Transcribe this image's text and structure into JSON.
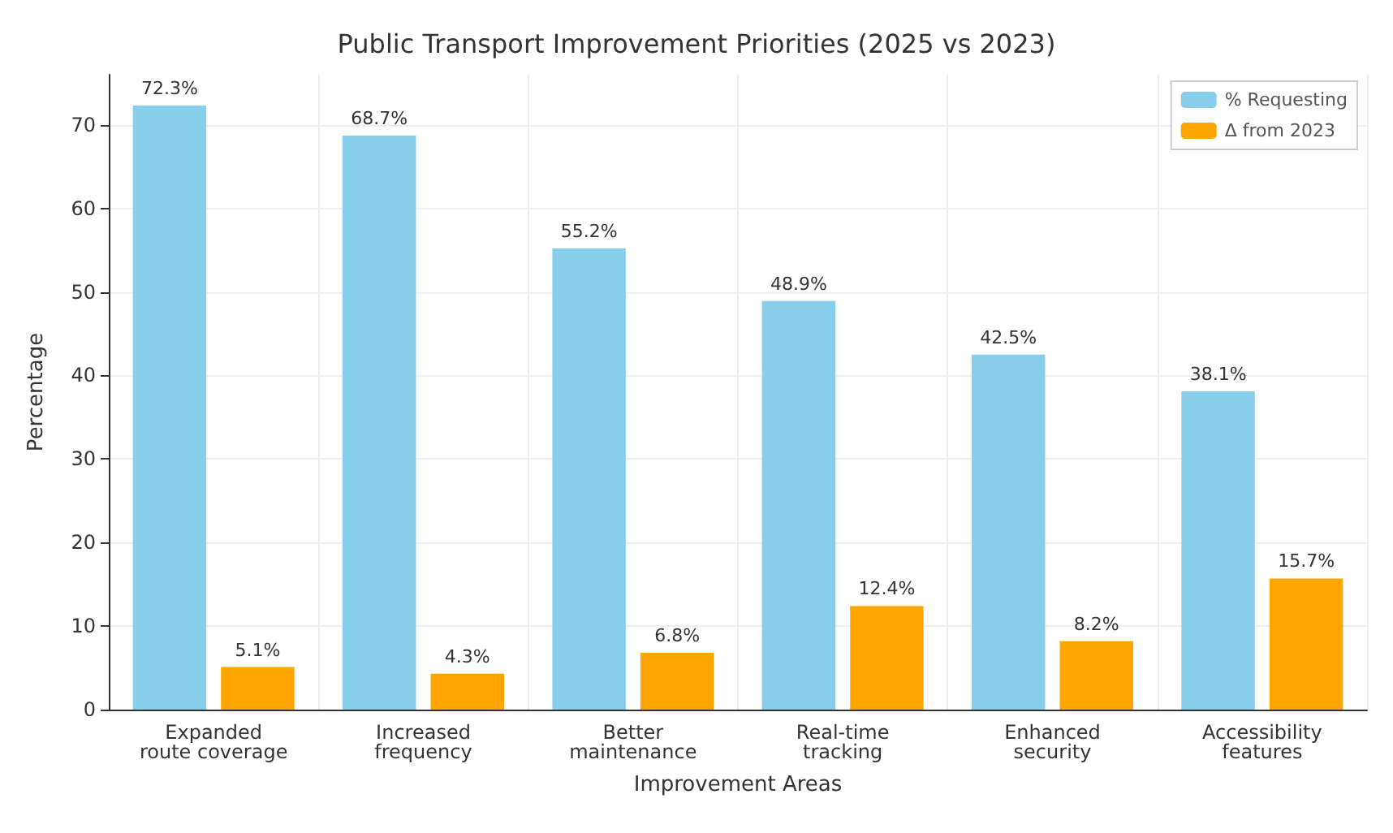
{
  "chart_data": {
    "type": "bar",
    "title": "Public Transport Improvement Priorities (2025 vs 2023)",
    "xlabel": "Improvement Areas",
    "ylabel": "Percentage",
    "categories": [
      "Expanded\nroute coverage",
      "Increased\nfrequency",
      "Better\nmaintenance",
      "Real-time\ntracking",
      "Enhanced\nsecurity",
      "Accessibility\nfeatures"
    ],
    "series": [
      {
        "name": "% Requesting",
        "color": "#87ceeb",
        "values": [
          72.3,
          68.7,
          55.2,
          48.9,
          42.5,
          38.1
        ],
        "value_labels": [
          "72.3%",
          "68.7%",
          "55.2%",
          "48.9%",
          "42.5%",
          "38.1%"
        ]
      },
      {
        "name": "Δ from 2023",
        "color": "#ffa500",
        "values": [
          5.1,
          4.3,
          6.8,
          12.4,
          8.2,
          15.7
        ],
        "value_labels": [
          "5.1%",
          "4.3%",
          "6.8%",
          "12.4%",
          "8.2%",
          "15.7%"
        ]
      }
    ],
    "ylim": [
      0,
      76
    ],
    "yticks": [
      0,
      10,
      20,
      30,
      40,
      50,
      60,
      70
    ],
    "grid": true,
    "legend": "top right"
  }
}
